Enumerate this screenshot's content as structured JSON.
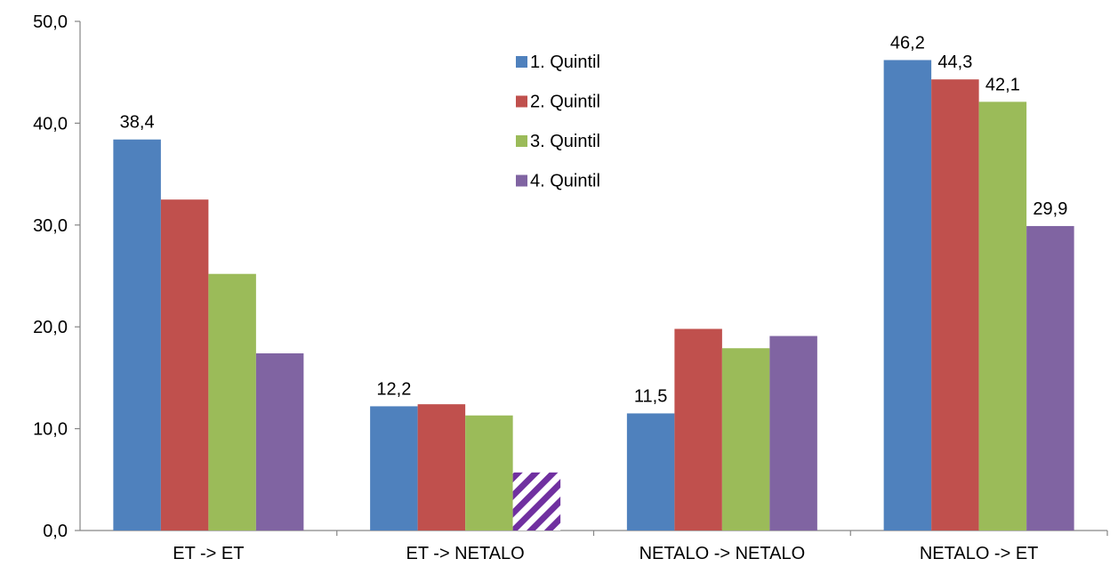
{
  "chart_data": {
    "type": "bar",
    "title": "",
    "xlabel": "",
    "ylabel": "",
    "ylim": [
      0,
      50
    ],
    "y_ticks": [
      "0,0",
      "10,0",
      "20,0",
      "30,0",
      "40,0",
      "50,0"
    ],
    "grid": false,
    "legend_position": "top-center",
    "categories": [
      "ET -> ET",
      "ET -> NETALO",
      "NETALO -> NETALO",
      "NETALO -> ET"
    ],
    "series": [
      {
        "name": "1. Quintil",
        "color": "#4f81bd",
        "values": [
          38.4,
          12.2,
          11.5,
          46.2
        ],
        "labels": [
          "38,4",
          "12,2",
          "11,5",
          "46,2"
        ]
      },
      {
        "name": "2. Quintil",
        "color": "#c0504d",
        "values": [
          32.5,
          12.4,
          19.8,
          44.3
        ],
        "labels": [
          "",
          "",
          "",
          "44,3"
        ]
      },
      {
        "name": "3. Quintil",
        "color": "#9bbb59",
        "values": [
          25.2,
          11.3,
          17.9,
          42.1
        ],
        "labels": [
          "",
          "",
          "",
          "42,1"
        ]
      },
      {
        "name": "4. Quintil",
        "color": "#8064a2",
        "values": [
          17.4,
          5.7,
          19.1,
          29.9
        ],
        "labels": [
          "",
          "",
          "",
          "29,9"
        ],
        "hatched": [
          false,
          true,
          false,
          false
        ]
      }
    ]
  }
}
